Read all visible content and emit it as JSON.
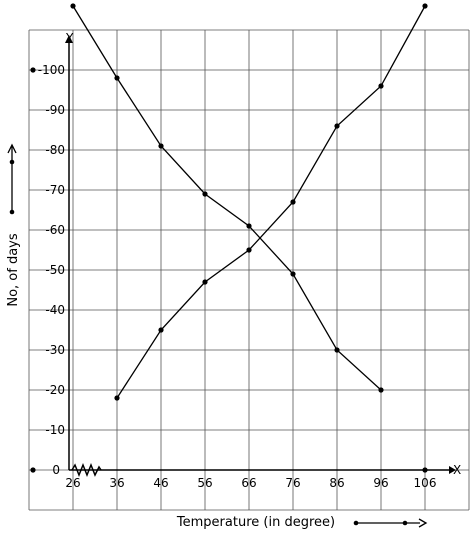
{
  "chart_data": {
    "type": "line",
    "xlabel": "Temperature (in degree)",
    "ylabel": "No, of days",
    "x_axis_letter": "X",
    "y_axis_letter": "Y",
    "origin_label": "0",
    "x_ticks": [
      26,
      36,
      46,
      56,
      66,
      76,
      86,
      96,
      106
    ],
    "y_ticks": [
      10,
      20,
      30,
      40,
      50,
      60,
      70,
      80,
      90,
      100
    ],
    "xlim": [
      16,
      116
    ],
    "ylim": [
      -10,
      110
    ],
    "grid": true,
    "series": [
      {
        "x": [
          26,
          36,
          46,
          56,
          66,
          76,
          86,
          96
        ],
        "values": [
          116,
          98,
          81,
          69,
          61,
          49,
          30,
          20
        ]
      },
      {
        "x": [
          36,
          46,
          56,
          66,
          76,
          86,
          96,
          106
        ],
        "values": [
          18,
          35,
          47,
          55,
          67,
          86,
          96,
          116
        ]
      }
    ]
  }
}
